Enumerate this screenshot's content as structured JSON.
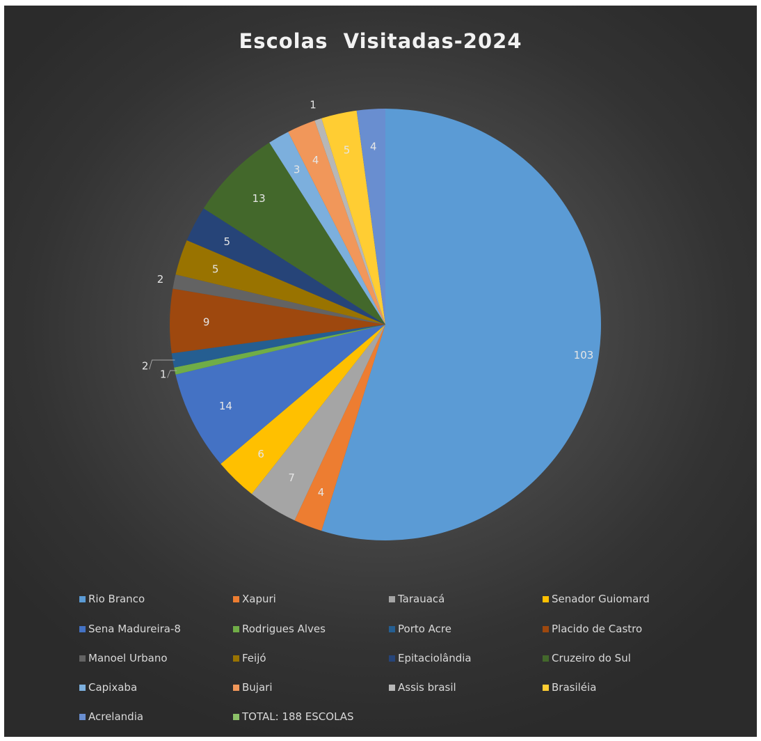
{
  "chart_data": {
    "type": "pie",
    "title": "Escolas  Visitadas-2024",
    "slices": [
      {
        "name": "Rio Branco",
        "value": 103,
        "label": "103",
        "color": "#5b9bd5"
      },
      {
        "name": "Xapuri",
        "value": 4,
        "label": "4",
        "color": "#ed7d31"
      },
      {
        "name": "Tarauacá",
        "value": 7,
        "label": "7",
        "color": "#a5a5a5"
      },
      {
        "name": "Senador Guiomard",
        "value": 6,
        "label": "6",
        "color": "#ffc000"
      },
      {
        "name": "Sena Madureira-8",
        "value": 14,
        "label": "14",
        "color": "#4472c4"
      },
      {
        "name": "Rodrigues Alves",
        "value": 1,
        "label": "1",
        "color": "#70ad47"
      },
      {
        "name": "Porto Acre",
        "value": 2,
        "label": "2",
        "color": "#255e91"
      },
      {
        "name": "Placido de Castro",
        "value": 9,
        "label": "9",
        "color": "#9e480e"
      },
      {
        "name": "Manoel Urbano",
        "value": 2,
        "label": "2",
        "color": "#636363"
      },
      {
        "name": "Feijó",
        "value": 5,
        "label": "5",
        "color": "#997300"
      },
      {
        "name": "Epitaciolândia",
        "value": 5,
        "label": "5",
        "color": "#264478"
      },
      {
        "name": "Cruzeiro do Sul",
        "value": 13,
        "label": "13",
        "color": "#43682b"
      },
      {
        "name": "Capixaba",
        "value": 3,
        "label": "3",
        "color": "#7cafdd"
      },
      {
        "name": "Bujari",
        "value": 4,
        "label": "4",
        "color": "#f1975a"
      },
      {
        "name": "Assis brasil",
        "value": 1,
        "label": "1",
        "color": "#b7b7b7"
      },
      {
        "name": "Brasiléia",
        "value": 5,
        "label": "5",
        "color": "#ffcd33"
      },
      {
        "name": "Acrelandia",
        "value": 4,
        "label": "4",
        "color": "#698ed0"
      },
      {
        "name": "TOTAL: 188 ESCOLAS",
        "value": 0,
        "label": "",
        "color": "#8cc168"
      }
    ],
    "legend_position": "bottom"
  }
}
